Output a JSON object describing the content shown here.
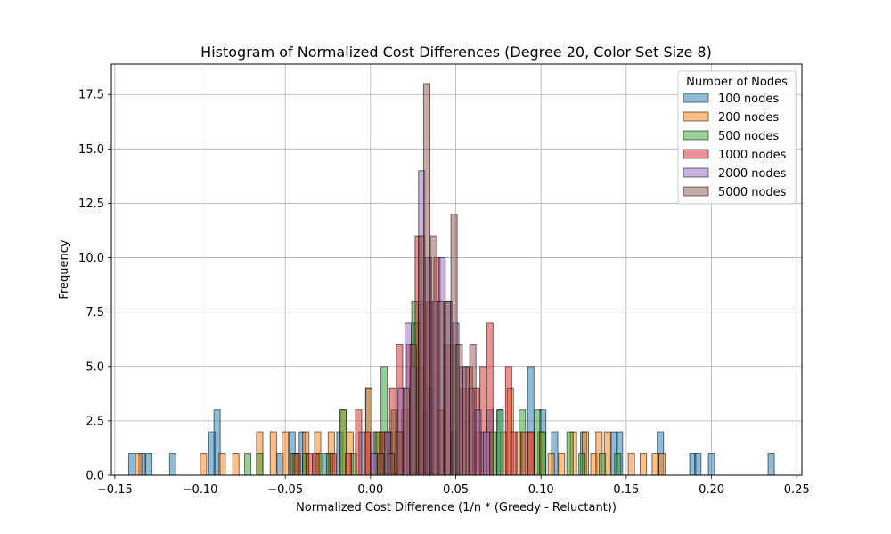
{
  "chart_data": {
    "type": "bar",
    "subtype": "overlaid-histogram",
    "title": "Histogram of Normalized Cost Differences (Degree 20, Color Set Size 8)",
    "xlabel": "Normalized Cost Difference (1/n * (Greedy - Reluctant))",
    "ylabel": "Frequency",
    "xlim": [
      -0.152,
      0.253
    ],
    "ylim": [
      0,
      18.9
    ],
    "xticks": [
      -0.15,
      -0.1,
      -0.05,
      0.0,
      0.05,
      0.1,
      0.15,
      0.2,
      0.25
    ],
    "xtick_labels": [
      "−0.15",
      "−0.10",
      "−0.05",
      "0.00",
      "0.05",
      "0.10",
      "0.15",
      "0.20",
      "0.25"
    ],
    "yticks": [
      0,
      2.5,
      5,
      7.5,
      10,
      12.5,
      15,
      17.5
    ],
    "ytick_labels": [
      "0.0",
      "2.5",
      "5.0",
      "7.5",
      "10.0",
      "12.5",
      "15.0",
      "17.5"
    ],
    "grid": true,
    "legend": {
      "title": "Number of Nodes",
      "placement": "top-right"
    },
    "bin_width": 0.0037,
    "series": [
      {
        "name": "100 nodes",
        "color": "#1f77b4",
        "x": [
          -0.14,
          -0.134,
          -0.13,
          -0.116,
          -0.093,
          -0.09,
          -0.053,
          -0.046,
          -0.04,
          -0.026,
          -0.018,
          -0.005,
          -0.001,
          0.002,
          0.011,
          0.031,
          0.035,
          0.041,
          0.049,
          0.066,
          0.07,
          0.076,
          0.094,
          0.101,
          0.108,
          0.125,
          0.143,
          0.146,
          0.17,
          0.189,
          0.192,
          0.2,
          0.235
        ],
        "values": [
          1,
          1,
          1,
          1,
          2,
          3,
          1,
          2,
          2,
          1,
          2,
          2,
          4,
          2,
          2,
          3,
          4,
          3,
          2,
          2,
          3,
          3,
          5,
          3,
          2,
          2,
          2,
          2,
          2,
          1,
          1,
          1,
          1
        ]
      },
      {
        "name": "200 nodes",
        "color": "#ff7f0e",
        "x": [
          -0.136,
          -0.098,
          -0.087,
          -0.079,
          -0.065,
          -0.057,
          -0.05,
          -0.045,
          -0.038,
          -0.031,
          -0.023,
          -0.016,
          -0.012,
          -0.001,
          0.004,
          0.009,
          0.016,
          0.02,
          0.042,
          0.063,
          0.078,
          0.082,
          0.087,
          0.094,
          0.1,
          0.106,
          0.112,
          0.119,
          0.126,
          0.131,
          0.134,
          0.139,
          0.153,
          0.16,
          0.167,
          0.171
        ],
        "values": [
          1,
          1,
          1,
          1,
          2,
          2,
          2,
          1,
          2,
          2,
          2,
          3,
          2,
          4,
          2,
          2,
          2,
          3,
          3,
          2,
          2,
          4,
          2,
          2,
          2,
          1,
          1,
          2,
          2,
          1,
          2,
          2,
          1,
          1,
          1,
          1
        ]
      },
      {
        "name": "500 nodes",
        "color": "#2ca02c",
        "x": [
          -0.072,
          -0.065,
          -0.044,
          -0.038,
          -0.03,
          -0.024,
          -0.016,
          -0.01,
          0.005,
          0.008,
          0.014,
          0.026,
          0.027,
          0.03,
          0.05,
          0.072,
          0.076,
          0.089,
          0.098,
          0.101,
          0.117,
          0.124,
          0.136,
          0.145
        ],
        "values": [
          1,
          1,
          1,
          1,
          1,
          1,
          3,
          1,
          2,
          5,
          3,
          8,
          7,
          5,
          6,
          2,
          3,
          3,
          3,
          2,
          2,
          1,
          1,
          1
        ]
      },
      {
        "name": "1000 nodes",
        "color": "#d62728",
        "x": [
          -0.043,
          -0.036,
          -0.032,
          -0.022,
          -0.013,
          -0.007,
          -0.002,
          0.007,
          0.013,
          0.017,
          0.023,
          0.028,
          0.031,
          0.035,
          0.039,
          0.045,
          0.054,
          0.058,
          0.062,
          0.066,
          0.07,
          0.081,
          0.084,
          0.09,
          0.094
        ],
        "values": [
          1,
          1,
          1,
          1,
          1,
          3,
          2,
          2,
          4,
          6,
          6,
          11,
          8,
          8,
          10,
          6,
          4,
          5,
          4,
          5,
          7,
          5,
          2,
          2,
          2
        ]
      },
      {
        "name": "2000 nodes",
        "color": "#9467bd",
        "x": [
          0.002,
          0.01,
          0.018,
          0.022,
          0.025,
          0.03,
          0.034,
          0.038,
          0.042,
          0.046,
          0.05,
          0.054,
          0.059,
          0.063,
          0.068
        ],
        "values": [
          1,
          2,
          4,
          7,
          5,
          14,
          10,
          8,
          10,
          8,
          7,
          5,
          4,
          3,
          2
        ]
      },
      {
        "name": "5000 nodes",
        "color": "#8c564b",
        "x": [
          0.006,
          0.012,
          0.017,
          0.021,
          0.025,
          0.03,
          0.033,
          0.037,
          0.041,
          0.045,
          0.049,
          0.052,
          0.056,
          0.06
        ],
        "values": [
          1,
          1,
          2,
          4,
          6,
          11,
          18,
          11,
          8,
          8,
          12,
          6,
          5,
          6
        ]
      }
    ]
  }
}
